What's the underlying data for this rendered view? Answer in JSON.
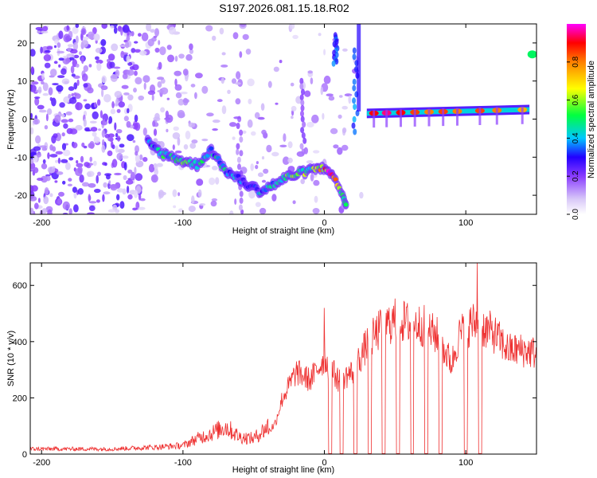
{
  "title": "S197.2026.081.15.18.R02",
  "chart_data": [
    {
      "type": "heatmap",
      "name": "spectrogram",
      "xlabel": "Height of straight line (km)",
      "ylabel": "Frequency (Hz)",
      "xlim": [
        -208,
        150
      ],
      "ylim": [
        -25,
        25
      ],
      "xticks": [
        -200,
        -100,
        0,
        100
      ],
      "yticks": [
        -20,
        -10,
        0,
        10,
        20
      ],
      "colorbar": {
        "label": "Normalized spectral amplitude",
        "range": [
          0,
          1
        ],
        "ticks": [
          0.0,
          0.2,
          0.4,
          0.6,
          0.8
        ],
        "tick_labels": [
          "0.0",
          "0.2",
          "0.4",
          "0.6",
          "0.8"
        ],
        "colormap": [
          "#ffffff",
          "#d8c8f8",
          "#8a3cff",
          "#2200ff",
          "#00c8ff",
          "#00ff40",
          "#ffff00",
          "#ff8000",
          "#ff0000",
          "#ff00ff"
        ]
      },
      "ridge_track": [
        {
          "x": -125,
          "y": -6,
          "a": 0.35
        },
        {
          "x": -115,
          "y": -9,
          "a": 0.45
        },
        {
          "x": -100,
          "y": -11,
          "a": 0.5
        },
        {
          "x": -90,
          "y": -12,
          "a": 0.45
        },
        {
          "x": -80,
          "y": -8,
          "a": 0.4
        },
        {
          "x": -75,
          "y": -11,
          "a": 0.45
        },
        {
          "x": -68,
          "y": -14,
          "a": 0.4
        },
        {
          "x": -55,
          "y": -17,
          "a": 0.35
        },
        {
          "x": -45,
          "y": -19,
          "a": 0.4
        },
        {
          "x": -35,
          "y": -17,
          "a": 0.45
        },
        {
          "x": -25,
          "y": -15,
          "a": 0.5
        },
        {
          "x": -15,
          "y": -14,
          "a": 0.55
        },
        {
          "x": -5,
          "y": -13,
          "a": 0.6
        },
        {
          "x": 3,
          "y": -13,
          "a": 0.9
        },
        {
          "x": 13,
          "y": -20,
          "a": 0.5
        },
        {
          "x": 16,
          "y": -23,
          "a": 0.55
        }
      ],
      "stable_line": {
        "x_start": 30,
        "x_end": 145,
        "y_start": 1.5,
        "y_end": 2.5
      },
      "stable_peaks": [
        {
          "x": 35,
          "a": 0.9
        },
        {
          "x": 44,
          "a": 0.95
        },
        {
          "x": 54,
          "a": 0.9
        },
        {
          "x": 64,
          "a": 0.85
        },
        {
          "x": 74,
          "a": 0.8
        },
        {
          "x": 84,
          "a": 0.85
        },
        {
          "x": 94,
          "a": 0.8
        },
        {
          "x": 110,
          "a": 0.85
        },
        {
          "x": 122,
          "a": 0.8
        },
        {
          "x": 140,
          "a": 0.75
        }
      ],
      "upper_patch": {
        "x": 147,
        "y": 17,
        "a": 0.5
      }
    },
    {
      "type": "line",
      "name": "snr",
      "xlabel": "Height of straight line (km)",
      "ylabel": "SNR (10 * v/v)",
      "xlim": [
        -208,
        150
      ],
      "ylim": [
        0,
        680
      ],
      "xticks": [
        -200,
        -100,
        0,
        100
      ],
      "yticks": [
        0,
        200,
        400,
        600
      ],
      "line_color": "#ee3030",
      "envelope_x": [
        -208,
        -150,
        -120,
        -100,
        -90,
        -80,
        -70,
        -60,
        -50,
        -40,
        -35,
        -30,
        -20,
        -10,
        0,
        10,
        20,
        30,
        40,
        50,
        60,
        70,
        80,
        90,
        95,
        100,
        105,
        110,
        120,
        130,
        140,
        150
      ],
      "envelope_y": [
        15,
        15,
        20,
        25,
        45,
        60,
        80,
        50,
        45,
        80,
        110,
        200,
        300,
        270,
        350,
        270,
        300,
        400,
        460,
        490,
        480,
        470,
        430,
        330,
        430,
        460,
        480,
        470,
        440,
        380,
        380,
        370
      ],
      "dropout_centers": [
        4,
        12,
        22,
        32,
        42,
        52,
        62,
        72,
        82,
        100,
        110
      ],
      "spike_markers": [
        {
          "x": 0,
          "y": 520
        },
        {
          "x": 108,
          "y": 680
        }
      ]
    }
  ]
}
